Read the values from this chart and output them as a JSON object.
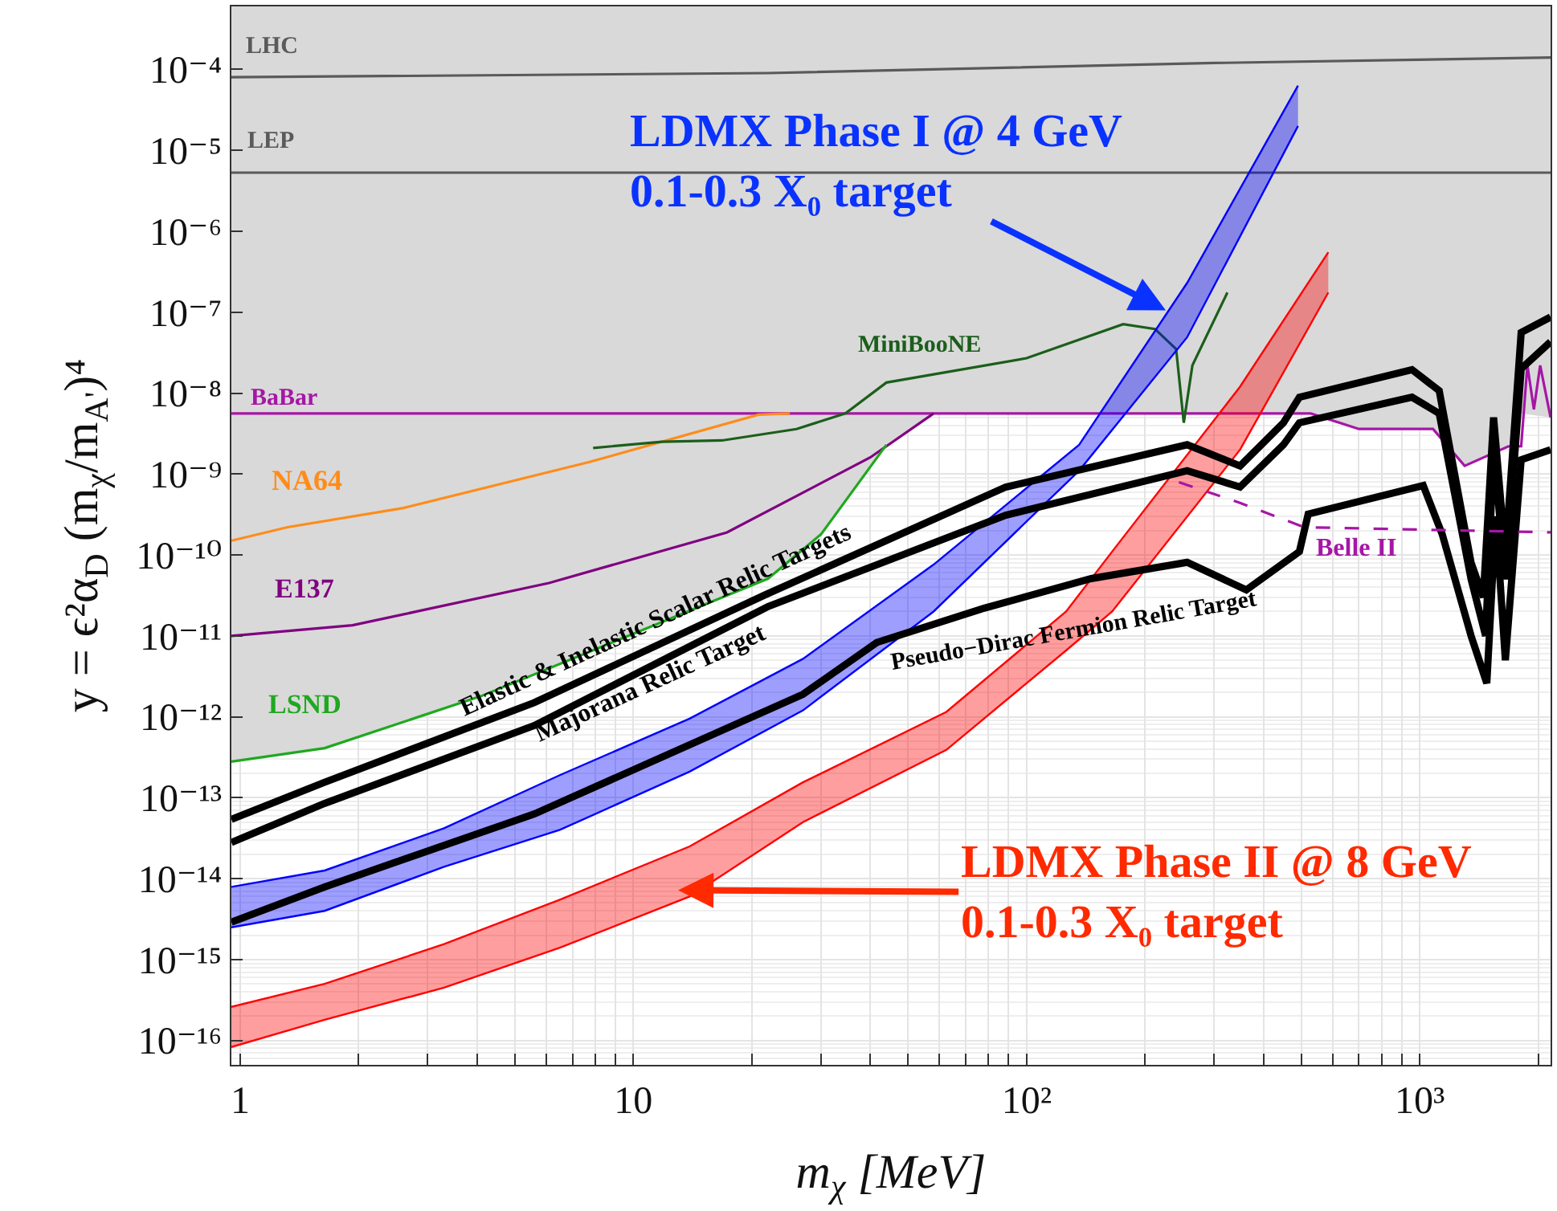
{
  "chart_data": {
    "type": "line",
    "xlabel": "m$_{χ}$ [MeV]",
    "ylabel": "y = ϵ²α$_{D}$ (m$_{χ}$/m$_{A'}$)⁴",
    "log": "xy",
    "grid": true,
    "legend": false,
    "marker": "none",
    "xlim": [
      0.95,
      2150
    ],
    "ylim": [
      5e-17,
      0.0006
    ],
    "xticks": [
      1,
      {
        "value": 2,
        "label": null
      },
      {
        "value": 3,
        "label": null
      },
      {
        "value": 4,
        "label": null
      },
      {
        "value": 5,
        "label": null
      },
      {
        "value": 6,
        "label": null
      },
      {
        "value": 7,
        "label": null
      },
      {
        "value": 8,
        "label": null
      },
      {
        "value": 9,
        "label": null
      },
      10,
      {
        "value": 20,
        "label": null
      },
      {
        "value": 30,
        "label": null
      },
      {
        "value": 40,
        "label": null
      },
      {
        "value": 50,
        "label": null
      },
      {
        "value": 60,
        "label": null
      },
      {
        "value": 70,
        "label": null
      },
      {
        "value": 80,
        "label": null
      },
      {
        "value": 90,
        "label": null
      },
      {
        "value": 100,
        "label": "10²"
      },
      {
        "value": 200,
        "label": null
      },
      {
        "value": 300,
        "label": null
      },
      {
        "value": 400,
        "label": null
      },
      {
        "value": 500,
        "label": null
      },
      {
        "value": 600,
        "label": null
      },
      {
        "value": 700,
        "label": null
      },
      {
        "value": 800,
        "label": null
      },
      {
        "value": 900,
        "label": null
      },
      {
        "value": 1000,
        "label": "10³"
      },
      {
        "value": 2000,
        "label": null
      }
    ],
    "yticks": [
      {
        "value": 0.0001,
        "label": "10⁻⁴"
      },
      {
        "value": 1e-05,
        "label": "10⁻⁵"
      },
      {
        "value": 1e-06,
        "label": "10⁻⁶"
      },
      {
        "value": 1e-07,
        "label": "10⁻⁷"
      },
      {
        "value": 1e-08,
        "label": "10⁻⁸"
      },
      {
        "value": 1e-09,
        "label": "10⁻⁹"
      },
      {
        "value": 1e-10,
        "label": "10⁻¹⁰"
      },
      {
        "value": 1e-11,
        "label": "10⁻¹¹"
      },
      {
        "value": 1e-12,
        "label": "10⁻¹²"
      },
      {
        "value": 1e-13,
        "label": "10⁻¹³"
      },
      {
        "value": 1e-14,
        "label": "10⁻¹⁴"
      },
      {
        "value": 1e-15,
        "label": "10⁻¹⁵"
      },
      {
        "value": 1e-16,
        "label": "10⁻¹⁶"
      }
    ],
    "series": [
      {
        "type": "area",
        "color": "#d9d9d9",
        "x": [
          0.95,
          1.64,
          4.1,
          22,
          30,
          44,
          58,
          528,
          700,
          1080,
          1300,
          1680,
          1810,
          2150
        ],
        "values": [
          null,
          null,
          null,
          null,
          null,
          null,
          null,
          null,
          null,
          null,
          null,
          null,
          null,
          null
        ],
        "lower": [
          2.8e-13,
          4.1e-13,
          1.8e-12,
          5.1e-11,
          1.8e-10,
          2.3e-09,
          5.6e-09,
          5.6e-09,
          3.6e-09,
          3.6e-09,
          1.26e-09,
          2.2e-09,
          5.6e-09,
          5e-09
        ],
        "upper": [
          0.0006,
          0.0006,
          0.0006,
          0.0006,
          0.0006,
          0.0006,
          0.0006,
          0.0006,
          0.0006,
          0.0006,
          0.0006,
          0.0006,
          0.0006,
          0.0006
        ]
      },
      {
        "name": "LHC",
        "color": "#5a5a5a",
        "x": [
          0.95,
          22,
          300,
          2150
        ],
        "values": [
          8e-05,
          9e-05,
          0.00012,
          0.00014
        ]
      },
      {
        "name": "LEP",
        "color": "#5a5a5a",
        "x": [
          0.95,
          2150
        ],
        "values": [
          5.3e-06,
          5.3e-06
        ]
      },
      {
        "name": "BaBar",
        "color": "#a616a6",
        "x": [
          0.95,
          528,
          700,
          1080,
          1300,
          1680,
          1810,
          1877,
          1950,
          2023,
          2150
        ],
        "values": [
          5.6e-09,
          5.6e-09,
          3.6e-09,
          3.6e-09,
          1.26e-09,
          2.2e-09,
          2.2e-09,
          2.2e-08,
          6.3e-09,
          2.2e-08,
          5e-09
        ]
      },
      {
        "name": "NA64",
        "color": "#ff8c1a",
        "x": [
          0.95,
          1.32,
          2.6,
          7.7,
          20.8,
          25
        ],
        "values": [
          1.5e-10,
          2.2e-10,
          3.8e-10,
          1.4e-09,
          5.4e-09,
          5.6e-09
        ]
      },
      {
        "name": "E137",
        "color": "#800080",
        "x": [
          0.95,
          1.93,
          6.1,
          17.3,
          40,
          58
        ],
        "values": [
          1e-11,
          1.35e-11,
          4.5e-11,
          1.9e-10,
          1.6e-09,
          5.6e-09
        ]
      },
      {
        "name": "LSND",
        "color": "#1fa81f",
        "x": [
          0.95,
          1.64,
          4.1,
          22,
          30,
          44
        ],
        "values": [
          2.8e-13,
          4.1e-13,
          1.8e-12,
          5.1e-11,
          1.8e-10,
          2.3e-09
        ]
      },
      {
        "name": "MiniBooNE",
        "color": "#1b5e1b",
        "x": [
          7.9,
          11.8,
          16.8,
          26,
          34.6,
          44,
          100,
          176,
          212,
          240,
          251,
          264,
          324
        ],
        "values": [
          2.1e-09,
          2.5e-09,
          2.6e-09,
          3.6e-09,
          5.6e-09,
          1.35e-08,
          2.7e-08,
          7.1e-08,
          6.2e-08,
          3.5e-08,
          4.3e-09,
          2.2e-08,
          1.75e-07
        ]
      },
      {
        "type": "area",
        "color": "#0000ff",
        "x": [
          0.95,
          1.64,
          3.3,
          6.5,
          13.9,
          27,
          58,
          136,
          256,
          490
        ],
        "values": [
          null,
          null,
          null,
          null,
          null,
          null,
          null,
          null,
          null,
          null
        ],
        "lower": [
          2.5e-15,
          4e-15,
          1.4e-14,
          4e-14,
          2.1e-13,
          1.2e-12,
          2e-11,
          1.1e-09,
          4.9e-08,
          2e-05
        ],
        "upper": [
          7.9e-15,
          1.26e-14,
          4.2e-14,
          1.9e-13,
          9.5e-13,
          5.2e-12,
          7.6e-11,
          2.3e-09,
          2.3e-07,
          6.3e-05
        ]
      },
      {
        "type": "line",
        "color": "#0000ff",
        "x": [
          0.95,
          1.64,
          3.3,
          6.5,
          13.9,
          27,
          58,
          136,
          256,
          490
        ],
        "values": [
          2.5e-15,
          4e-15,
          1.4e-14,
          4e-14,
          2.1e-13,
          1.2e-12,
          2e-11,
          1.1e-09,
          4.9e-08,
          2e-05
        ]
      },
      {
        "type": "line",
        "color": "#0000ff",
        "x": [
          0.95,
          1.64,
          3.3,
          6.5,
          13.9,
          27,
          58,
          136,
          256,
          490
        ],
        "values": [
          7.9e-15,
          1.26e-14,
          4.2e-14,
          1.9e-13,
          9.5e-13,
          5.2e-12,
          7.6e-11,
          2.3e-09,
          2.3e-07,
          6.3e-05
        ]
      },
      {
        "type": "area",
        "color": "#ff0000",
        "x": [
          0.95,
          1.64,
          3.3,
          6.5,
          13.9,
          27,
          62.5,
          126,
          165,
          349,
          585
        ],
        "values": [
          null,
          null,
          null,
          null,
          null,
          null,
          null,
          null,
          null,
          null,
          null
        ],
        "lower": [
          8.3e-17,
          1.8e-16,
          4.5e-16,
          1.4e-15,
          6e-15,
          5e-14,
          3.9e-13,
          6.6e-12,
          2e-11,
          2e-09,
          1.75e-07
        ],
        "upper": [
          2.6e-16,
          5e-16,
          1.55e-15,
          5.5e-15,
          2.5e-14,
          1.55e-13,
          1.15e-12,
          2e-11,
          1.1e-10,
          1.2e-08,
          5.5e-07
        ]
      },
      {
        "type": "line",
        "color": "#ff0000",
        "x": [
          0.95,
          1.64,
          3.3,
          6.5,
          13.9,
          27,
          62.5,
          126,
          165,
          349,
          585
        ],
        "values": [
          8.3e-17,
          1.8e-16,
          4.5e-16,
          1.4e-15,
          6e-15,
          5e-14,
          3.9e-13,
          6.6e-12,
          2e-11,
          2e-09,
          1.75e-07
        ]
      },
      {
        "type": "line",
        "color": "#ff0000",
        "x": [
          0.95,
          1.64,
          3.3,
          6.5,
          13.9,
          27,
          62.5,
          126,
          165,
          349,
          585
        ],
        "values": [
          2.6e-16,
          5e-16,
          1.55e-15,
          5.5e-15,
          2.5e-14,
          1.55e-13,
          1.15e-12,
          2e-11,
          1.1e-10,
          1.2e-08,
          5.5e-07
        ]
      },
      {
        "name": "Elastic & Inelastic Scalar Relic Targets",
        "color": "#000000",
        "x": [
          0.95,
          1.64,
          5.6,
          21.6,
          88.5,
          256,
          349,
          450,
          494,
          955,
          1120,
          1350,
          1450,
          1540,
          1650,
          1810,
          2150
        ],
        "values": [
          5.4e-14,
          1.55e-13,
          1.5e-12,
          3.2e-11,
          6.9e-10,
          2.3e-09,
          1.26e-09,
          4.3e-09,
          8.9e-09,
          1.95e-08,
          1.07e-08,
          8e-11,
          3e-11,
          5e-09,
          1e-10,
          5.6e-08,
          8.7e-08
        ]
      },
      {
        "name": "Majorana Relic Target",
        "color": "#000000",
        "x": [
          0.95,
          1.64,
          5.6,
          22,
          88.5,
          256,
          349,
          450,
          494,
          955,
          1120,
          1350,
          1470,
          1540,
          1650,
          1810,
          2150
        ],
        "values": [
          2.8e-14,
          8.5e-14,
          7.8e-13,
          2.3e-11,
          3.1e-10,
          1.1e-09,
          6.9e-10,
          2.3e-09,
          4.3e-09,
          8.9e-09,
          5.6e-09,
          5e-11,
          1e-11,
          2e-09,
          5e-11,
          2e-08,
          4.3e-08
        ]
      },
      {
        "name": "Pseudo−Dirac Fermion Relic Target",
        "color": "#000000",
        "x": [
          0.95,
          1.64,
          5.6,
          27,
          41.6,
          78,
          146,
          256,
          362,
          494,
          520,
          1020,
          1140,
          1350,
          1480,
          1560,
          1650,
          1810,
          2150
        ],
        "values": [
          2.9e-15,
          7.9e-15,
          6.3e-14,
          1.9e-12,
          8.3e-12,
          2.2e-11,
          5.1e-11,
          8.1e-11,
          3.7e-11,
          1.1e-10,
          3.2e-10,
          7.2e-10,
          1.8e-10,
          1e-11,
          2.6e-12,
          3e-10,
          5e-12,
          1.5e-09,
          2e-09
        ]
      },
      {
        "name": "Belle II",
        "color": "#a616a6",
        "line_style": "dashed",
        "x": [
          244,
          349,
          508,
          2150
        ],
        "values": [
          7.9e-10,
          4.4e-10,
          2.2e-10,
          1.9e-10
        ]
      }
    ],
    "annotations": [
      {
        "text": "LDMX Phase I @ 4 GeV\n0.1-0.3 X₀ target",
        "x": 226,
        "y": 1.05e-07
      },
      {
        "text": "LDMX Phase II @ 8 GeV\n0.1-0.3 X₀ target",
        "x": 13,
        "y": 7.2e-15
      }
    ]
  }
}
